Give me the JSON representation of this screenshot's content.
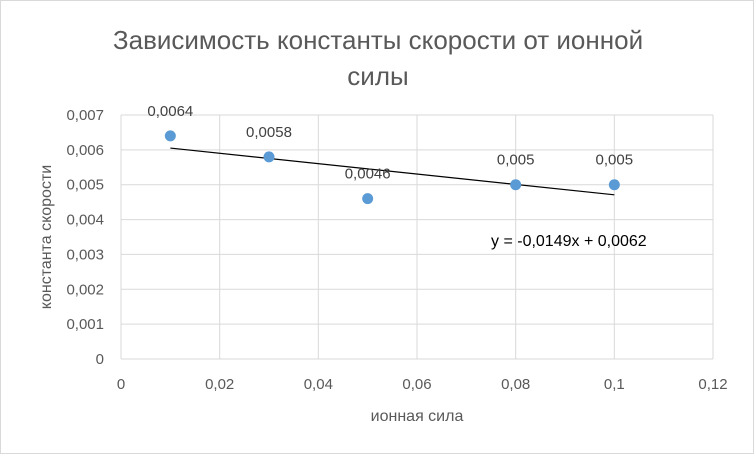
{
  "chart_data": {
    "type": "scatter",
    "title_lines": [
      "Зависимость константы скорости от ионной",
      "силы"
    ],
    "xlabel": "ионная сила",
    "ylabel": "константа скорости",
    "xlim": [
      0,
      0.12
    ],
    "ylim": [
      0,
      0.007
    ],
    "x_ticks": [
      0,
      0.02,
      0.04,
      0.06,
      0.08,
      0.1,
      0.12
    ],
    "x_tick_labels": [
      "0",
      "0,02",
      "0,04",
      "0,06",
      "0,08",
      "0,1",
      "0,12"
    ],
    "y_ticks": [
      0,
      0.001,
      0.002,
      0.003,
      0.004,
      0.005,
      0.006,
      0.007
    ],
    "y_tick_labels": [
      "0",
      "0,001",
      "0,002",
      "0,003",
      "0,004",
      "0,005",
      "0,006",
      "0,007"
    ],
    "grid": true,
    "points": [
      {
        "x": 0.01,
        "y": 0.0064,
        "label": "0,0064"
      },
      {
        "x": 0.03,
        "y": 0.0058,
        "label": "0,0058"
      },
      {
        "x": 0.05,
        "y": 0.0046,
        "label": "0,0046"
      },
      {
        "x": 0.08,
        "y": 0.005,
        "label": "0,005"
      },
      {
        "x": 0.1,
        "y": 0.005,
        "label": "0,005"
      }
    ],
    "trendline": {
      "slope": -0.0149,
      "intercept": 0.0062,
      "x_range": [
        0.01,
        0.1
      ],
      "equation": "y = -0,0149x + 0,0062"
    },
    "colors": {
      "marker": "#5b9bd5",
      "grid": "#d9d9d9",
      "trendline": "#000000",
      "text": "#595959"
    }
  }
}
